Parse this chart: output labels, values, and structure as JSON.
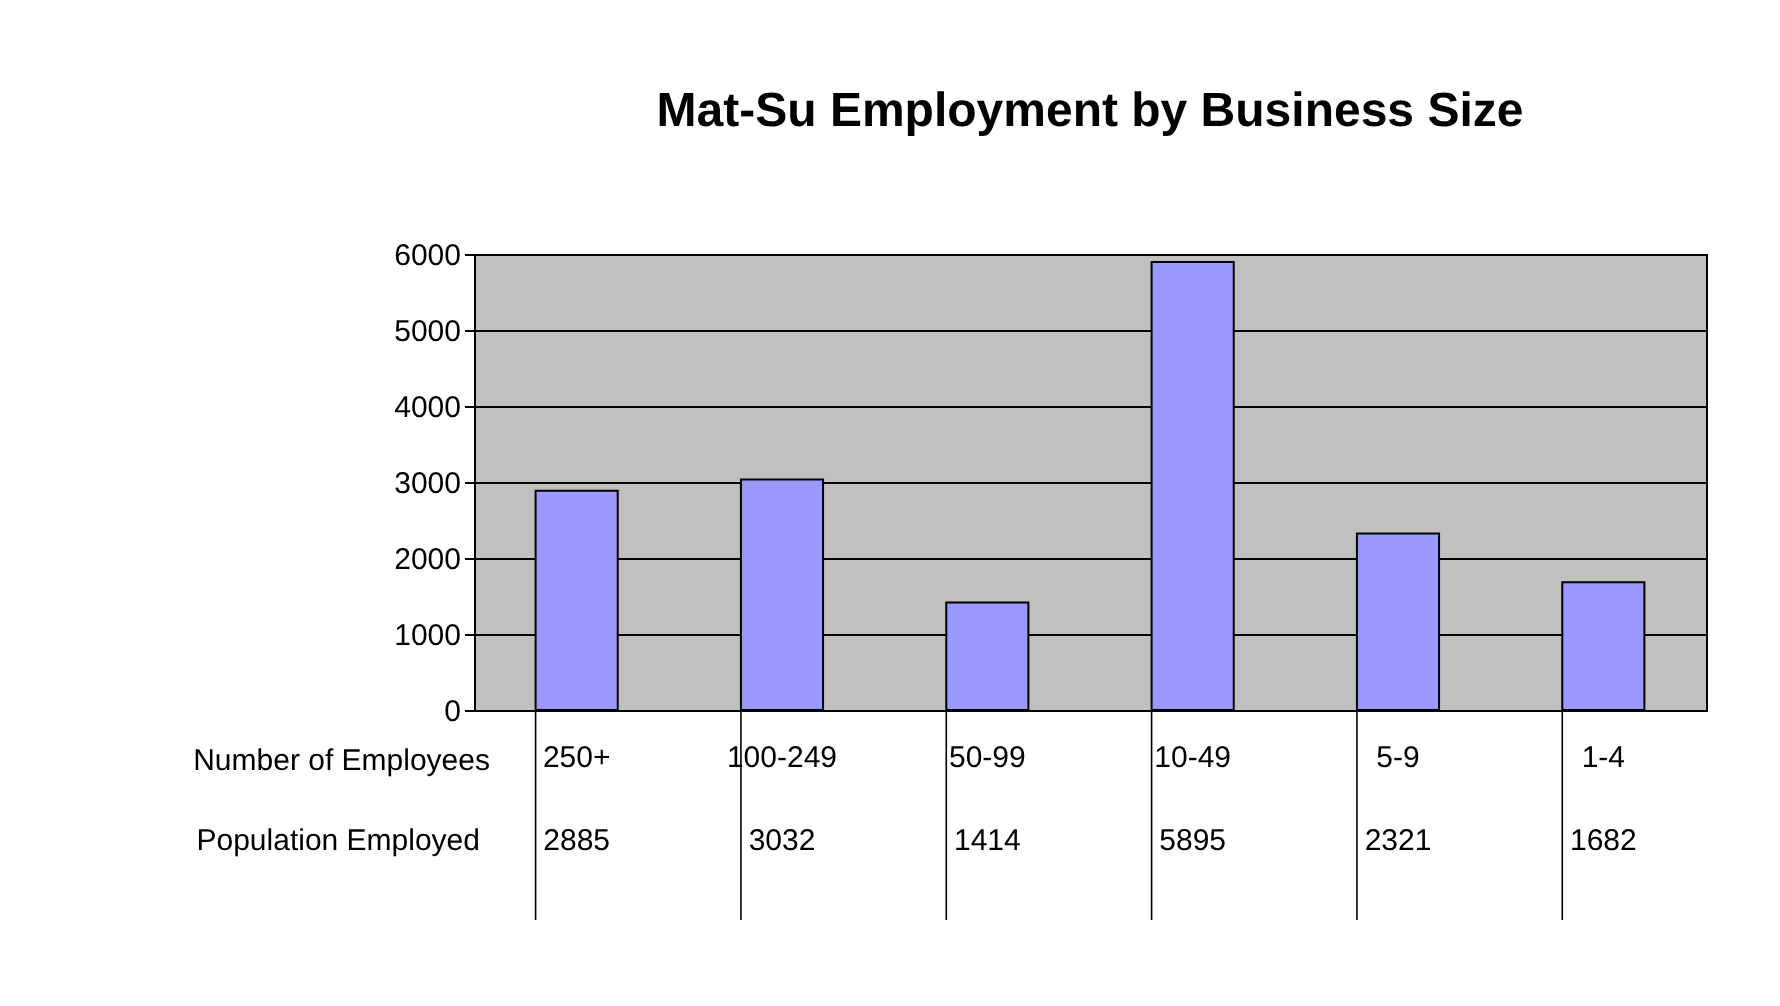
{
  "chart_data": {
    "type": "bar",
    "title": "Mat-Su Employment by Business Size",
    "xlabel": "Number of Employees",
    "categories": [
      "250+",
      "100-249",
      "50-99",
      "10-49",
      "5-9",
      "1-4"
    ],
    "series": [
      {
        "name": "Population Employed",
        "color": "#9999ff",
        "values": [
          2885,
          3032,
          1414,
          5895,
          2321,
          1682
        ]
      }
    ],
    "ylim": [
      0,
      6000
    ],
    "yticks": [
      0,
      1000,
      2000,
      3000,
      4000,
      5000,
      6000
    ],
    "grid": true,
    "data_labels": true
  }
}
